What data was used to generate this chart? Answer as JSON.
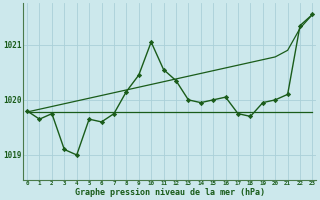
{
  "xlabel": "Graphe pression niveau de la mer (hPa)",
  "background_color": "#cce8ec",
  "grid_color": "#aad0d8",
  "line_color": "#1a5c1a",
  "ylim": [
    1018.55,
    1021.75
  ],
  "xlim": [
    -0.3,
    23.3
  ],
  "yticks": [
    1019,
    1020,
    1021
  ],
  "xticks": [
    0,
    1,
    2,
    3,
    4,
    5,
    6,
    7,
    8,
    9,
    10,
    11,
    12,
    13,
    14,
    15,
    16,
    17,
    18,
    19,
    20,
    21,
    22,
    23
  ],
  "series_wavy": [
    1019.8,
    1019.65,
    1019.75,
    1019.1,
    1019.0,
    1019.65,
    1019.6,
    1019.75,
    1020.15,
    1020.45,
    1021.05,
    1020.55,
    1020.35,
    1020.0,
    1019.95,
    1020.0,
    1020.05,
    1019.75,
    1019.7,
    1019.95,
    1020.0,
    1020.1,
    1021.35,
    1021.55
  ],
  "series_flat": [
    1019.78,
    1019.78,
    1019.78,
    1019.78,
    1019.78,
    1019.78,
    1019.78,
    1019.78,
    1019.78,
    1019.78,
    1019.78,
    1019.78,
    1019.78,
    1019.78,
    1019.78,
    1019.78,
    1019.78,
    1019.78,
    1019.78,
    1019.78,
    1019.78,
    1019.78,
    1019.78,
    1019.78
  ],
  "series_trend": [
    1019.78,
    1019.83,
    1019.88,
    1019.93,
    1019.98,
    1020.03,
    1020.08,
    1020.13,
    1020.18,
    1020.23,
    1020.28,
    1020.33,
    1020.38,
    1020.43,
    1020.48,
    1020.53,
    1020.58,
    1020.63,
    1020.68,
    1020.73,
    1020.78,
    1020.9,
    1021.3,
    1021.55
  ]
}
